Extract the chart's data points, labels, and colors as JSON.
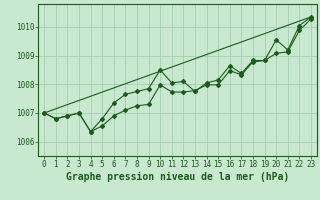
{
  "background_color": "#c8e8d0",
  "plot_bg_color": "#c8e8d0",
  "grid_color": "#a0c8b0",
  "line_color": "#1a5c1a",
  "xlabel": "Graphe pression niveau de la mer (hPa)",
  "xlim": [
    -0.5,
    23.5
  ],
  "ylim": [
    1005.5,
    1010.8
  ],
  "yticks": [
    1006,
    1007,
    1008,
    1009,
    1010
  ],
  "xticks": [
    0,
    1,
    2,
    3,
    4,
    5,
    6,
    7,
    8,
    9,
    10,
    11,
    12,
    13,
    14,
    15,
    16,
    17,
    18,
    19,
    20,
    21,
    22,
    23
  ],
  "line1_x": [
    0,
    1,
    2,
    3,
    4,
    5,
    6,
    7,
    8,
    9,
    10,
    11,
    12,
    13,
    14,
    15,
    16,
    17,
    18,
    19,
    20,
    21,
    22,
    23
  ],
  "line1_y": [
    1007.0,
    1006.8,
    1006.9,
    1007.0,
    1006.35,
    1006.55,
    1006.9,
    1007.1,
    1007.25,
    1007.3,
    1007.98,
    1007.73,
    1007.73,
    1007.78,
    1007.98,
    1007.98,
    1008.48,
    1008.33,
    1008.78,
    1008.83,
    1009.08,
    1009.13,
    1009.88,
    1010.28
  ],
  "line2_x": [
    0,
    1,
    2,
    3,
    4,
    5,
    6,
    7,
    8,
    9,
    10,
    11,
    12,
    13,
    14,
    15,
    16,
    17,
    18,
    19,
    20,
    21,
    22,
    23
  ],
  "line2_y": [
    1007.0,
    1006.8,
    1006.9,
    1007.0,
    1006.35,
    1006.8,
    1007.35,
    1007.65,
    1007.75,
    1007.85,
    1008.5,
    1008.05,
    1008.1,
    1007.75,
    1008.05,
    1008.15,
    1008.65,
    1008.38,
    1008.83,
    1008.83,
    1009.55,
    1009.2,
    1010.05,
    1010.35
  ],
  "line3_x": [
    0,
    23
  ],
  "line3_y": [
    1007.0,
    1010.35
  ],
  "marker_style": "D",
  "marker_size": 2.0,
  "line_width": 0.8,
  "xlabel_fontsize": 7,
  "tick_fontsize": 5.5
}
